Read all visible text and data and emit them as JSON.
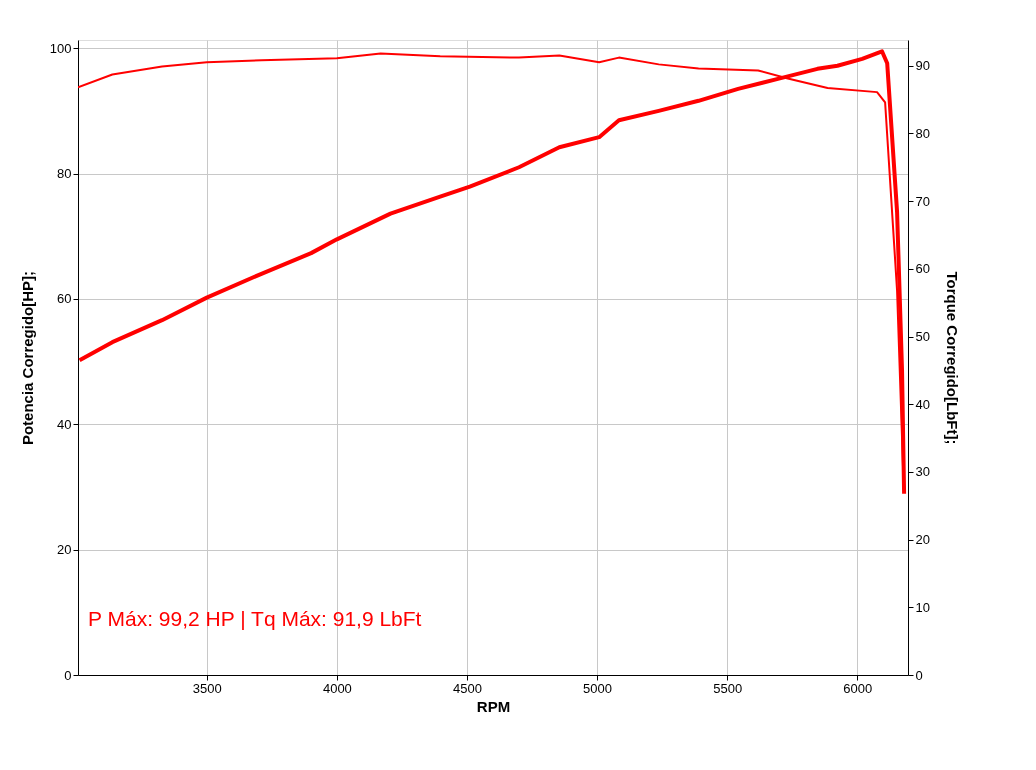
{
  "chart_data": {
    "type": "line",
    "xlabel": "RPM",
    "ylabel": "Potencia Corregido[HP];",
    "y2label": "Torque Corregido[LbFt];",
    "annotations": [
      "P Máx: 99,2 HP | Tq Máx: 91,9 LbFt"
    ],
    "xlim": [
      3005,
      6195
    ],
    "xticks": [
      3500,
      4000,
      4500,
      5000,
      5500,
      6000
    ],
    "ylim": [
      0,
      101.3
    ],
    "yticks": [
      0,
      20,
      40,
      60,
      80,
      100
    ],
    "y2lim": [
      0,
      93.8
    ],
    "y2ticks": [
      0,
      10,
      20,
      30,
      40,
      50,
      60,
      70,
      80,
      90
    ],
    "grid": true,
    "marker": "none",
    "line_style": "solid",
    "series": [
      {
        "color": "#ff0000",
        "x": [
          3011,
          3137,
          3328,
          3500,
          3710,
          3901,
          4000,
          4206,
          4397,
          4511,
          4700,
          4855,
          5008,
          5084,
          5237,
          5390,
          5542,
          5695,
          5847,
          5924,
          6019,
          6095,
          6115,
          6153,
          6172,
          6180
        ],
        "values": [
          50.2,
          53.1,
          56.6,
          60.2,
          64.0,
          67.3,
          69.5,
          73.6,
          76.3,
          77.9,
          81.0,
          84.2,
          85.8,
          88.5,
          90.0,
          91.6,
          93.5,
          95.1,
          96.7,
          97.2,
          98.3,
          99.5,
          97.6,
          73.9,
          48.7,
          28.9
        ]
      },
      {
        "color": "#ff0000",
        "axis": "y2",
        "x": [
          3005,
          3137,
          3328,
          3500,
          3710,
          4000,
          4168,
          4397,
          4700,
          4855,
          5008,
          5084,
          5237,
          5390,
          5619,
          5733,
          5886,
          6076,
          6107,
          6153,
          6176
        ],
        "values": [
          86.8,
          88.7,
          89.9,
          90.5,
          90.8,
          91.1,
          91.8,
          91.4,
          91.2,
          91.5,
          90.5,
          91.2,
          90.2,
          89.6,
          89.3,
          88.1,
          86.7,
          86.1,
          84.6,
          56.8,
          30.5
        ]
      }
    ]
  }
}
